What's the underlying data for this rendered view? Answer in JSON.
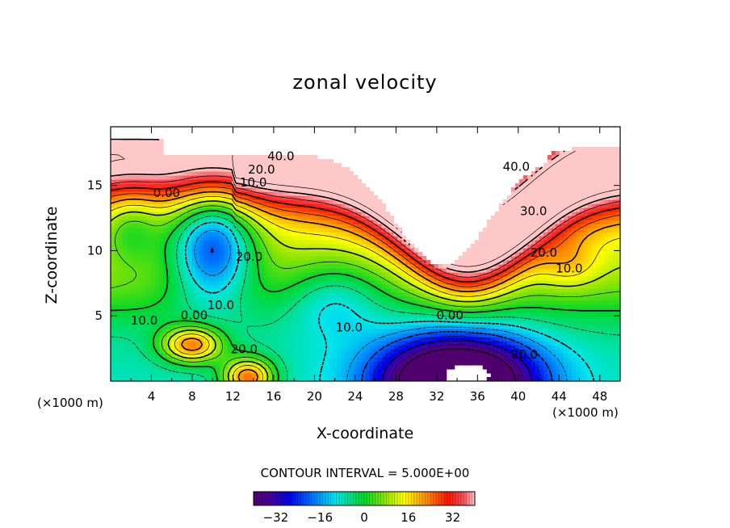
{
  "chart_data": {
    "type": "heatmap",
    "title": "zonal velocity",
    "xlabel": "X-coordinate",
    "ylabel": "Z-coordinate",
    "x_unit": "(×1000 m)",
    "xlim": [
      0,
      50
    ],
    "ylim": [
      0,
      19.5
    ],
    "x_ticks": [
      4,
      8,
      12,
      16,
      20,
      24,
      28,
      32,
      36,
      40,
      44,
      48
    ],
    "y_ticks": [
      5,
      10,
      15
    ],
    "contour_interval": "CONTOUR INTERVAL = 5.000E+00",
    "contour_labels": [
      {
        "text": "40.0",
        "x": 16.7,
        "z": 17.2
      },
      {
        "text": "40.0",
        "x": 39.8,
        "z": 16.4
      },
      {
        "text": "20.0",
        "x": 14.8,
        "z": 16.2
      },
      {
        "text": "10.0",
        "x": 14.0,
        "z": 15.2
      },
      {
        "text": "0.00",
        "x": 5.5,
        "z": 14.4
      },
      {
        "text": "30.0",
        "x": 41.5,
        "z": 13.0
      },
      {
        "text": "20.0",
        "x": 13.6,
        "z": 9.5
      },
      {
        "text": "20.0",
        "x": 42.5,
        "z": 9.8
      },
      {
        "text": "10.0",
        "x": 45.0,
        "z": 8.6
      },
      {
        "text": "10.0",
        "x": 10.8,
        "z": 5.8
      },
      {
        "text": "0.00",
        "x": 8.2,
        "z": 5.0
      },
      {
        "text": "0.00",
        "x": 33.3,
        "z": 5.0
      },
      {
        "text": "10.0",
        "x": 3.3,
        "z": 4.6
      },
      {
        "text": "10.0",
        "x": 23.4,
        "z": 4.1
      },
      {
        "text": "20.0",
        "x": 13.1,
        "z": 2.4
      },
      {
        "text": "20.0",
        "x": 40.6,
        "z": 2.0
      }
    ],
    "colorbar": {
      "range": [
        -40,
        40
      ],
      "ticks": [
        -32,
        -16,
        0,
        16,
        32
      ]
    },
    "features": [
      {
        "kind": "max",
        "value": 45,
        "x": 32,
        "z": 16.5
      },
      {
        "kind": "min",
        "value": -25,
        "x": 10,
        "z": 11
      },
      {
        "kind": "min",
        "value": -40,
        "x": 34,
        "z": 0.8
      },
      {
        "kind": "max",
        "value": 30,
        "x": 8,
        "z": 2.8
      },
      {
        "kind": "max",
        "value": 30,
        "x": 13.5,
        "z": 0.6
      }
    ]
  }
}
